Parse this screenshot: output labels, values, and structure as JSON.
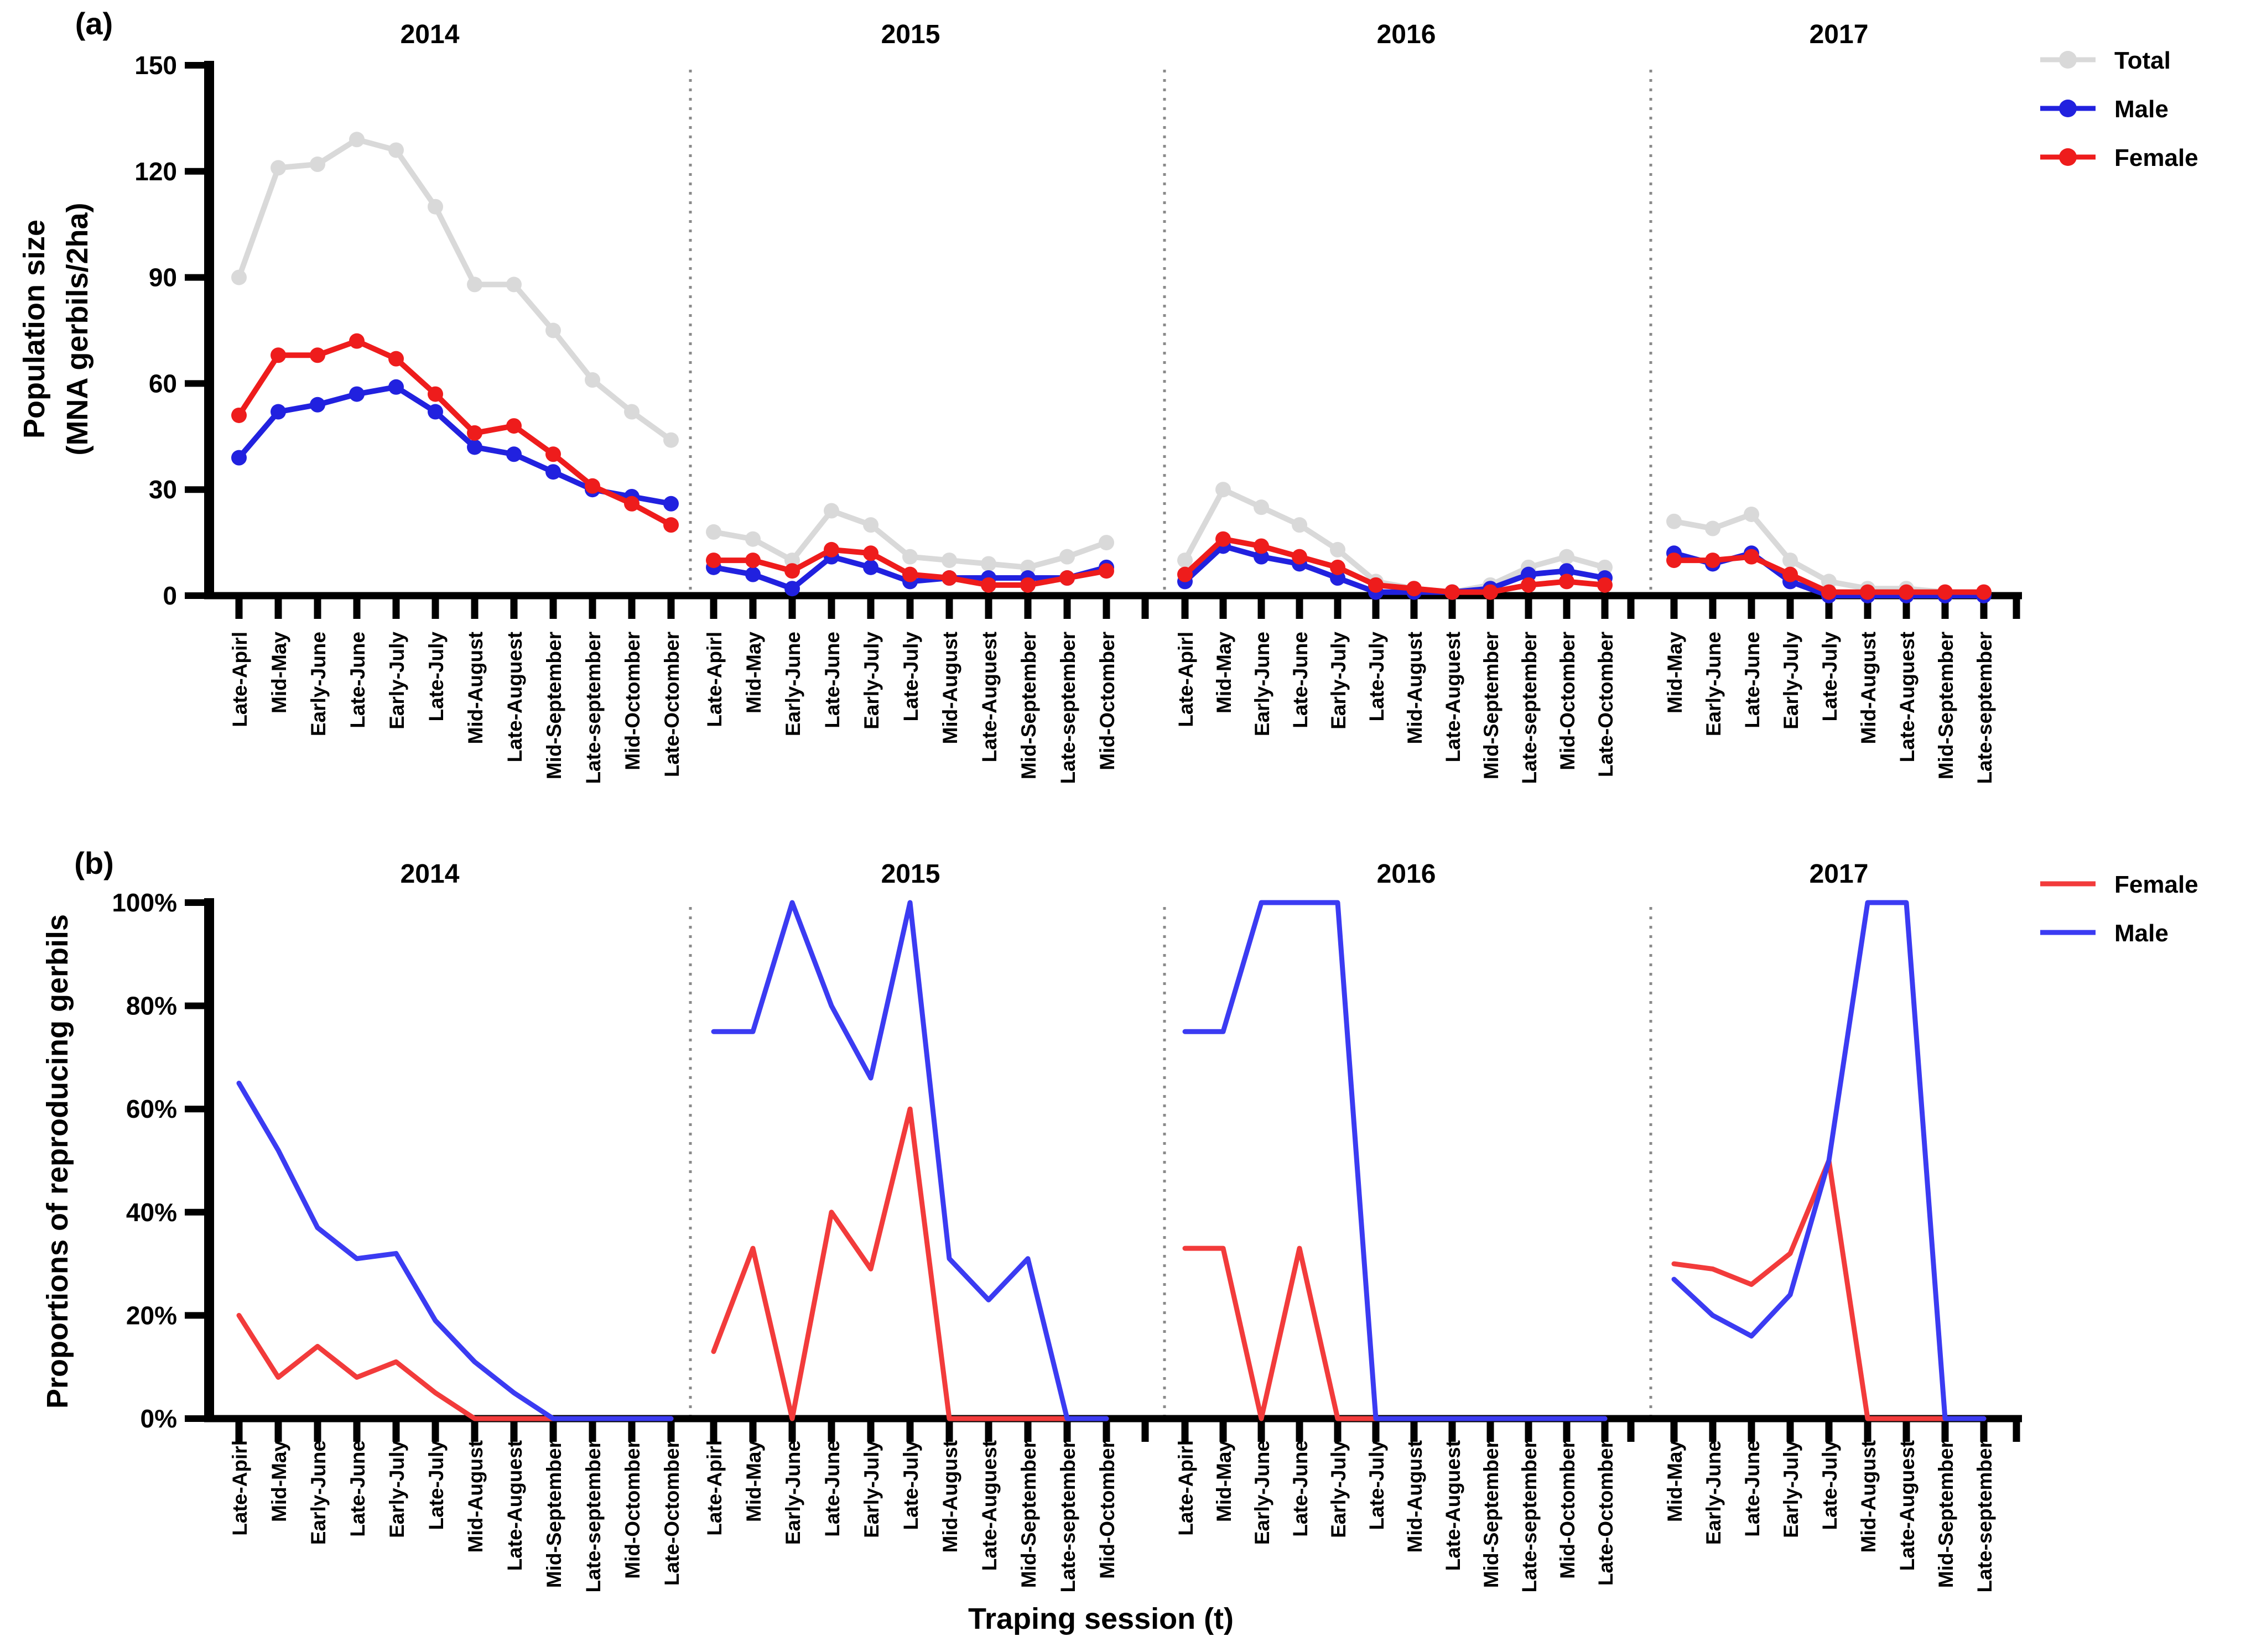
{
  "figure": {
    "panel_a_label": "(a)",
    "panel_b_label": "(b)",
    "panel_a_ylabel_line1": "Population size",
    "panel_a_ylabel_line2": "(MNA gerbils/2ha)",
    "panel_b_ylabel": "Proportions of reproducing gerbils",
    "xlabel": "Traping session (t)"
  },
  "colors": {
    "total_gray": "#d9d9d9",
    "male_blue_a": "#2121df",
    "female_red_a": "#ee1c1c",
    "female_red_b": "#f23b3b",
    "male_blue_b": "#3b3bf2",
    "divider_gray": "#8a8a8a",
    "axis_black": "#000000"
  },
  "chart_data": [
    {
      "panel": "a",
      "type": "line",
      "title": "",
      "ylabel": "Population size (MNA gerbils/2ha)",
      "xlabel": "Traping session (t)",
      "ylim": [
        0,
        150
      ],
      "yticks": [
        0,
        30,
        60,
        90,
        120,
        150
      ],
      "ytick_suffix": "",
      "grid": false,
      "legend_position": "top-right",
      "legend": [
        {
          "label": "Total",
          "color": "#d9d9d9",
          "marker": "line-dot"
        },
        {
          "label": "Male",
          "color": "#2121df",
          "marker": "line-dot"
        },
        {
          "label": "Female",
          "color": "#ee1c1c",
          "marker": "line-dot"
        }
      ],
      "groups": [
        {
          "year": "2014",
          "categories": [
            "Late-Apirl",
            "Mid-May",
            "Early-June",
            "Late-June",
            "Early-July",
            "Late-July",
            "Mid-August",
            "Late-Auguest",
            "Mid-September",
            "Late-september",
            "Mid-Octomber",
            "Late-Octomber"
          ],
          "series": [
            {
              "name": "Total",
              "color": "#d9d9d9",
              "values": [
                90,
                121,
                122,
                129,
                126,
                110,
                88,
                88,
                75,
                61,
                52,
                44
              ]
            },
            {
              "name": "Male",
              "color": "#2121df",
              "values": [
                39,
                52,
                54,
                57,
                59,
                52,
                42,
                40,
                35,
                30,
                28,
                26
              ]
            },
            {
              "name": "Female",
              "color": "#ee1c1c",
              "values": [
                51,
                68,
                68,
                72,
                67,
                57,
                46,
                48,
                40,
                31,
                26,
                20
              ]
            }
          ]
        },
        {
          "year": "2015",
          "categories": [
            "Late-Apirl",
            "Mid-May",
            "Early-June",
            "Late-June",
            "Early-July",
            "Late-July",
            "Mid-August",
            "Late-Auguest",
            "Mid-September",
            "Late-september",
            "Mid-Octomber"
          ],
          "series": [
            {
              "name": "Total",
              "color": "#d9d9d9",
              "values": [
                18,
                16,
                10,
                24,
                20,
                11,
                10,
                9,
                8,
                11,
                15
              ]
            },
            {
              "name": "Male",
              "color": "#2121df",
              "values": [
                8,
                6,
                2,
                11,
                8,
                4,
                5,
                5,
                5,
                5,
                8
              ]
            },
            {
              "name": "Female",
              "color": "#ee1c1c",
              "values": [
                10,
                10,
                7,
                13,
                12,
                6,
                5,
                3,
                3,
                5,
                7
              ]
            }
          ]
        },
        {
          "year": "2016",
          "categories": [
            "Late-Apirl",
            "Mid-May",
            "Early-June",
            "Late-June",
            "Early-July",
            "Late-July",
            "Mid-August",
            "Late-Auguest",
            "Mid-September",
            "Late-september",
            "Mid-Octomber",
            "Late-Octomber"
          ],
          "series": [
            {
              "name": "Total",
              "color": "#d9d9d9",
              "values": [
                10,
                30,
                25,
                20,
                13,
                4,
                2,
                1,
                3,
                8,
                11,
                8
              ]
            },
            {
              "name": "Male",
              "color": "#2121df",
              "values": [
                4,
                14,
                11,
                9,
                5,
                1,
                1,
                1,
                2,
                6,
                7,
                5
              ]
            },
            {
              "name": "Female",
              "color": "#ee1c1c",
              "values": [
                6,
                16,
                14,
                11,
                8,
                3,
                2,
                1,
                1,
                3,
                4,
                3
              ]
            }
          ]
        },
        {
          "year": "2017",
          "categories": [
            "Mid-May",
            "Early-June",
            "Late-June",
            "Early-July",
            "Late-July",
            "Mid-August",
            "Late-Auguest",
            "Mid-September",
            "Late-september"
          ],
          "series": [
            {
              "name": "Total",
              "color": "#d9d9d9",
              "values": [
                21,
                19,
                23,
                10,
                4,
                2,
                2,
                1,
                1
              ]
            },
            {
              "name": "Male",
              "color": "#2121df",
              "values": [
                12,
                9,
                12,
                4,
                0,
                0,
                0,
                0,
                0
              ]
            },
            {
              "name": "Female",
              "color": "#ee1c1c",
              "values": [
                10,
                10,
                11,
                6,
                1,
                1,
                1,
                1,
                1
              ]
            }
          ]
        }
      ]
    },
    {
      "panel": "b",
      "type": "line",
      "title": "",
      "ylabel": "Proportions of reproducing gerbils",
      "xlabel": "Traping session (t)",
      "ylim": [
        0,
        100
      ],
      "yticks": [
        0,
        20,
        40,
        60,
        80,
        100
      ],
      "ytick_suffix": "%",
      "grid": false,
      "legend_position": "top-right",
      "legend": [
        {
          "label": "Female",
          "color": "#f23b3b",
          "marker": "line"
        },
        {
          "label": "Male",
          "color": "#3b3bf2",
          "marker": "line"
        }
      ],
      "groups": [
        {
          "year": "2014",
          "categories": [
            "Late-Apirl",
            "Mid-May",
            "Early-June",
            "Late-June",
            "Early-July",
            "Late-July",
            "Mid-August",
            "Late-Auguest",
            "Mid-September",
            "Late-september",
            "Mid-Octomber",
            "Late-Octomber"
          ],
          "series": [
            {
              "name": "Female",
              "color": "#f23b3b",
              "values": [
                20,
                8,
                14,
                8,
                11,
                5,
                0,
                0,
                0,
                0,
                0,
                0
              ]
            },
            {
              "name": "Male",
              "color": "#3b3bf2",
              "values": [
                65,
                52,
                37,
                31,
                32,
                19,
                11,
                5,
                0,
                0,
                0,
                0
              ]
            }
          ]
        },
        {
          "year": "2015",
          "categories": [
            "Late-Apirl",
            "Mid-May",
            "Early-June",
            "Late-June",
            "Early-July",
            "Late-July",
            "Mid-August",
            "Late-Auguest",
            "Mid-September",
            "Late-september",
            "Mid-Octomber"
          ],
          "series": [
            {
              "name": "Female",
              "color": "#f23b3b",
              "values": [
                13,
                33,
                0,
                40,
                29,
                60,
                0,
                0,
                0,
                0,
                0
              ]
            },
            {
              "name": "Male",
              "color": "#3b3bf2",
              "values": [
                75,
                75,
                100,
                80,
                66,
                100,
                31,
                23,
                31,
                0,
                0
              ]
            }
          ]
        },
        {
          "year": "2016",
          "categories": [
            "Late-Apirl",
            "Mid-May",
            "Early-June",
            "Late-June",
            "Early-July",
            "Late-July",
            "Mid-August",
            "Late-Auguest",
            "Mid-September",
            "Late-september",
            "Mid-Octomber",
            "Late-Octomber"
          ],
          "series": [
            {
              "name": "Female",
              "color": "#f23b3b",
              "values": [
                33,
                33,
                0,
                33,
                0,
                0,
                0,
                0,
                0,
                0,
                0,
                0
              ]
            },
            {
              "name": "Male",
              "color": "#3b3bf2",
              "values": [
                75,
                75,
                100,
                100,
                100,
                0,
                0,
                0,
                0,
                0,
                0,
                0
              ]
            }
          ]
        },
        {
          "year": "2017",
          "categories": [
            "Mid-May",
            "Early-June",
            "Late-June",
            "Early-July",
            "Late-July",
            "Mid-August",
            "Late-Auguest",
            "Mid-September",
            "Late-september"
          ],
          "series": [
            {
              "name": "Female",
              "color": "#f23b3b",
              "values": [
                30,
                29,
                26,
                32,
                50,
                0,
                0,
                0,
                0
              ]
            },
            {
              "name": "Male",
              "color": "#3b3bf2",
              "values": [
                27,
                20,
                16,
                24,
                50,
                100,
                100,
                0,
                0
              ]
            }
          ]
        }
      ]
    }
  ]
}
